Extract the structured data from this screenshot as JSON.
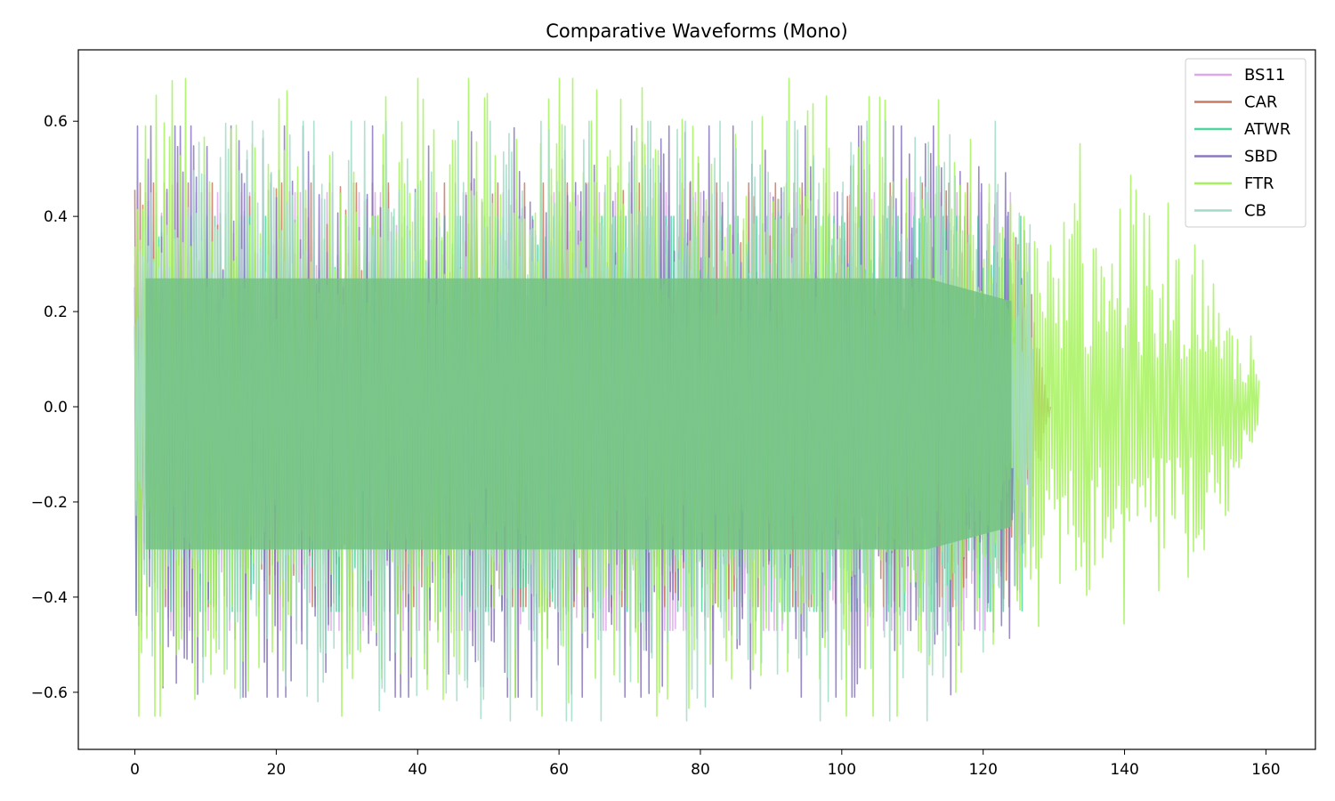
{
  "chart_data": {
    "type": "line",
    "title": "Comparative Waveforms (Mono)",
    "xlabel": "",
    "ylabel": "",
    "xlim": [
      -8,
      167
    ],
    "ylim": [
      -0.72,
      0.75
    ],
    "x_ticks": [
      0,
      20,
      40,
      60,
      80,
      100,
      120,
      140,
      160
    ],
    "x_tick_labels": [
      "0",
      "20",
      "40",
      "60",
      "80",
      "100",
      "120",
      "140",
      "160"
    ],
    "y_ticks": [
      0.6,
      0.4,
      0.2,
      0.0,
      -0.2,
      -0.4,
      -0.6
    ],
    "y_tick_labels": [
      "0.6",
      "0.4",
      "0.2",
      "0.0",
      "−0.2",
      "−0.4",
      "−0.6"
    ],
    "grid": false,
    "legend_position": "top-right",
    "series": [
      {
        "name": "BS11",
        "color": "#e0a8ec",
        "x_start": 0.0,
        "x_end": 126.5,
        "peak_pos": 0.45,
        "peak_neg": -0.47,
        "envelope": [
          [
            0,
            0.42
          ],
          [
            60,
            0.42
          ],
          [
            115,
            0.38
          ],
          [
            126.5,
            0.28
          ]
        ]
      },
      {
        "name": "CAR",
        "color": "#c87a64",
        "x_start": 0.0,
        "x_end": 129.5,
        "peak_pos": 0.47,
        "peak_neg": -0.42,
        "envelope": [
          [
            0,
            0.4
          ],
          [
            60,
            0.41
          ],
          [
            115,
            0.37
          ],
          [
            126.5,
            0.25
          ],
          [
            129.5,
            0.0
          ]
        ]
      },
      {
        "name": "ATWR",
        "color": "#4fd6a0",
        "x_start": 0.0,
        "x_end": 125.5,
        "peak_pos": 0.4,
        "peak_neg": -0.43,
        "envelope": [
          [
            0,
            0.4
          ],
          [
            60,
            0.4
          ],
          [
            115,
            0.37
          ],
          [
            125.5,
            0.35
          ]
        ]
      },
      {
        "name": "SBD",
        "color": "#8a78c0",
        "x_start": 0.0,
        "x_end": 126.0,
        "peak_pos": 0.59,
        "peak_neg": -0.61,
        "envelope": [
          [
            0,
            0.44
          ],
          [
            60,
            0.44
          ],
          [
            115,
            0.42
          ],
          [
            126.0,
            0.3
          ]
        ]
      },
      {
        "name": "FTR",
        "color": "#a6f25e",
        "x_start": 0.0,
        "x_end": 159.0,
        "peak_pos": 0.69,
        "peak_neg": -0.65,
        "envelope": [
          [
            0,
            0.46
          ],
          [
            60,
            0.46
          ],
          [
            115,
            0.44
          ],
          [
            126,
            0.32
          ],
          [
            135,
            0.3
          ],
          [
            150,
            0.27
          ],
          [
            159,
            0.06
          ]
        ]
      },
      {
        "name": "CB",
        "color": "#a2dcc6",
        "x_start": 0.0,
        "x_end": 127.0,
        "peak_pos": 0.6,
        "peak_neg": -0.66,
        "envelope": [
          [
            0,
            0.44
          ],
          [
            60,
            0.44
          ],
          [
            115,
            0.42
          ],
          [
            127.0,
            0.26
          ]
        ]
      }
    ]
  }
}
